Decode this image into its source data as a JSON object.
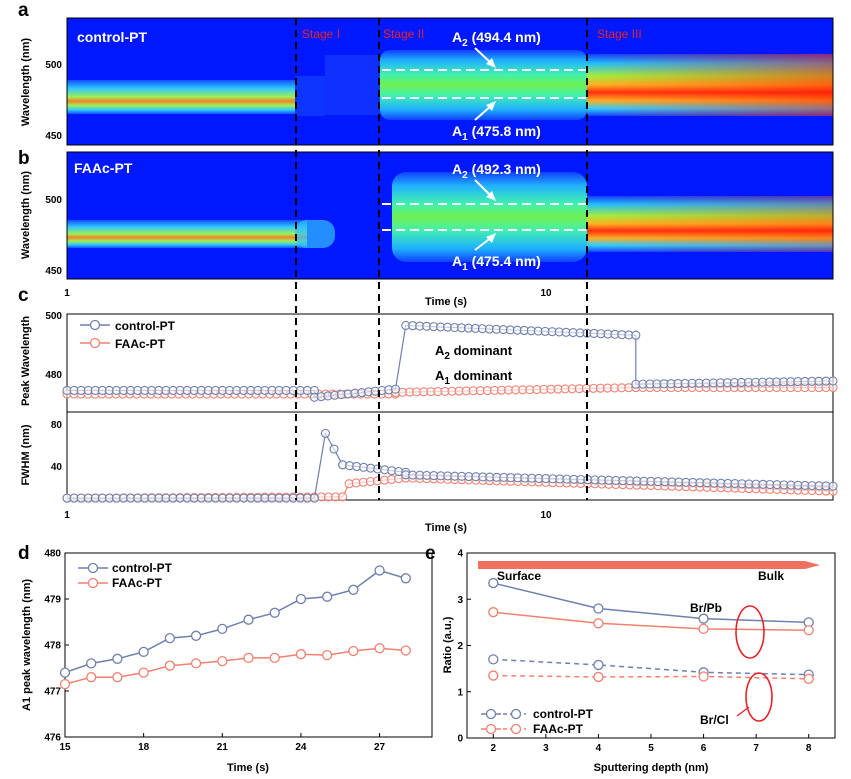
{
  "colors": {
    "control": "#6f7fae",
    "faac": "#f08070",
    "stage_line": "#000000",
    "arrow_e": "#f07060",
    "stage_text": "#e8242a"
  },
  "panels": {
    "a": {
      "label": "a",
      "sample": "control-PT",
      "ylabel": "Wavelength (nm)",
      "yticks": [
        "500",
        "450"
      ],
      "stages": [
        "Stage I",
        "Stage II",
        "Stage III"
      ],
      "a2_main": "A",
      "a2_sub": "2",
      "a2_val": " (494.4 nm)",
      "a1_main": "A",
      "a1_sub": "1",
      "a1_val": " (475.8 nm)"
    },
    "b": {
      "label": "b",
      "sample": "FAAc-PT",
      "ylabel": "Wavelength (nm)",
      "yticks": [
        "500",
        "450"
      ],
      "xticks": [
        "1",
        "10"
      ],
      "xlabel": "Time (s)",
      "a2_main": "A",
      "a2_sub": "2",
      "a2_val": " (492.3 nm)",
      "a1_main": "A",
      "a1_sub": "1",
      "a1_val": " (475.4 nm)"
    },
    "c": {
      "label": "c",
      "ylabel_top": "Peak Wavelength",
      "ylabel_bottom": "FWHM (nm)",
      "yticks_top": [
        "500",
        "480"
      ],
      "yticks_bottom": [
        "80",
        "40"
      ],
      "xticks": [
        "1",
        "10"
      ],
      "xlabel": "Time (s)",
      "legend": [
        "control-PT",
        "FAAc-PT"
      ],
      "ann_a2_main": "A",
      "ann_a2_sub": "2",
      "ann_a2_rest": " dominant",
      "ann_a1_main": "A",
      "ann_a1_sub": "1",
      "ann_a1_rest": " dominant"
    },
    "d": {
      "label": "d",
      "legend": [
        "control-PT",
        "FAAc-PT"
      ]
    },
    "e": {
      "label": "e",
      "legend": [
        "control-PT",
        "FAAc-PT"
      ],
      "arrow_left": "Surface",
      "arrow_right": "Bulk",
      "ann_brpb": "Br/Pb",
      "ann_brcl": "Br/Cl"
    }
  },
  "chart_data": [
    {
      "id": "d",
      "type": "line",
      "xlabel": "Time (s)",
      "ylabel": "A1 peak wavelength (nm)",
      "xlim": [
        15,
        29
      ],
      "ylim": [
        476,
        480
      ],
      "xticks": [
        15,
        18,
        21,
        24,
        27
      ],
      "yticks": [
        476,
        477,
        478,
        479,
        480
      ],
      "x": [
        15,
        16,
        17,
        18,
        19,
        20,
        21,
        22,
        23,
        24,
        25,
        26,
        27,
        28
      ],
      "series": [
        {
          "name": "control-PT",
          "values": [
            477.4,
            477.6,
            477.7,
            477.85,
            478.15,
            478.2,
            478.35,
            478.55,
            478.7,
            479.0,
            479.05,
            479.2,
            479.62,
            479.45
          ]
        },
        {
          "name": "FAAc-PT",
          "values": [
            477.15,
            477.3,
            477.3,
            477.4,
            477.55,
            477.6,
            477.65,
            477.72,
            477.72,
            477.8,
            477.78,
            477.87,
            477.93,
            477.88
          ]
        }
      ]
    },
    {
      "id": "e",
      "type": "line",
      "xlabel": "Sputtering depth (nm)",
      "ylabel": "Ratio (a.u.)",
      "xlim": [
        1.5,
        8.5
      ],
      "ylim": [
        0,
        4
      ],
      "xticks": [
        2,
        3,
        4,
        5,
        6,
        7,
        8
      ],
      "yticks": [
        0,
        1,
        2,
        3,
        4
      ],
      "x": [
        2,
        4,
        6,
        8
      ],
      "series": [
        {
          "name": "control-PT Br/Pb",
          "values": [
            3.35,
            2.8,
            2.58,
            2.5
          ]
        },
        {
          "name": "FAAc-PT Br/Pb",
          "values": [
            2.72,
            2.48,
            2.36,
            2.33
          ]
        },
        {
          "name": "control-PT Br/Cl",
          "values": [
            1.7,
            1.58,
            1.42,
            1.37
          ]
        },
        {
          "name": "FAAc-PT Br/Cl",
          "values": [
            1.35,
            1.32,
            1.33,
            1.28
          ]
        }
      ]
    },
    {
      "id": "c-top",
      "type": "scatter",
      "xscale": "log",
      "xlim": [
        1,
        30
      ],
      "ylim": [
        470,
        500
      ],
      "series": [
        {
          "name": "control-PT",
          "segments": [
            {
              "t0": 1.0,
              "t1": 3.0,
              "v0": 476.6,
              "v1": 476.6
            },
            {
              "t0": 3.0,
              "t1": 4.3,
              "v0": 474.5,
              "v1": 477.0
            },
            {
              "t0": 4.5,
              "t1": 12.5,
              "v0": 496.5,
              "v1": 493.5
            },
            {
              "t0": 12.5,
              "t1": 30.0,
              "v0": 478.5,
              "v1": 479.5
            }
          ]
        },
        {
          "name": "FAAc-PT",
          "segments": [
            {
              "t0": 1.0,
              "t1": 4.3,
              "v0": 475.5,
              "v1": 475.5
            },
            {
              "t0": 4.3,
              "t1": 12.5,
              "v0": 476.0,
              "v1": 477.5
            },
            {
              "t0": 12.5,
              "t1": 30.0,
              "v0": 477.5,
              "v1": 477.5
            }
          ]
        }
      ]
    },
    {
      "id": "c-bottom",
      "type": "scatter",
      "xscale": "log",
      "xlim": [
        1,
        30
      ],
      "ylim": [
        20,
        90
      ],
      "series": [
        {
          "name": "control-PT",
          "segments": [
            {
              "t0": 1.0,
              "t1": 3.0,
              "v0": 21.5,
              "v1": 21.5
            },
            {
              "t0": 3.15,
              "t1": 3.4,
              "v0": 73.0,
              "v1": 48.0
            },
            {
              "t0": 3.4,
              "t1": 4.5,
              "v0": 48.0,
              "v1": 42.0
            },
            {
              "t0": 4.5,
              "t1": 30.0,
              "v0": 40.0,
              "v1": 31.0
            }
          ]
        },
        {
          "name": "FAAc-PT",
          "segments": [
            {
              "t0": 1.0,
              "t1": 3.4,
              "v0": 21.5,
              "v1": 22.5
            },
            {
              "t0": 3.5,
              "t1": 4.5,
              "v0": 33.0,
              "v1": 37.5
            },
            {
              "t0": 4.5,
              "t1": 30.0,
              "v0": 37.5,
              "v1": 27.0
            }
          ]
        }
      ]
    }
  ]
}
